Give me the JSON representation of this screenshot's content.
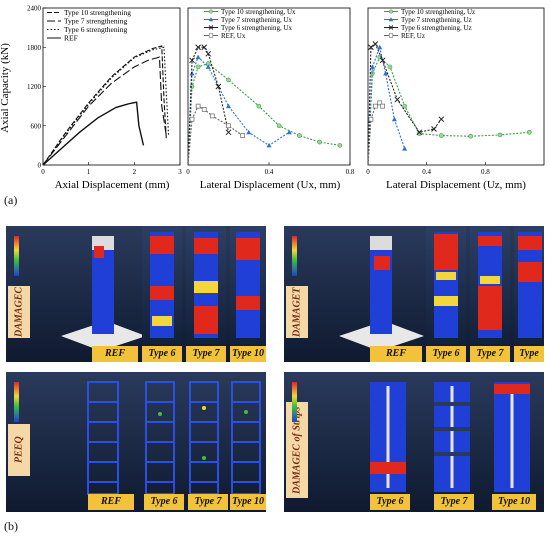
{
  "chart_data": [
    {
      "type": "line",
      "xlabel": "Axial Displacement (mm)",
      "ylabel": "Axial Capacity (kN)",
      "xlim": [
        0,
        3
      ],
      "ylim": [
        0,
        2400
      ],
      "xticks": [
        "0",
        "1",
        "2",
        "3"
      ],
      "yticks": [
        "0",
        "600",
        "1200",
        "1800",
        "2400"
      ],
      "legend": "top-left",
      "series": [
        {
          "name": "Type 10 strengthening",
          "style": "dash",
          "x": [
            0,
            0.5,
            1.0,
            1.5,
            2.0,
            2.4,
            2.6,
            2.65,
            2.7
          ],
          "y": [
            0,
            500,
            950,
            1350,
            1650,
            1780,
            1820,
            1000,
            400
          ]
        },
        {
          "name": "Type 7 strengthening",
          "style": "longdash",
          "x": [
            0,
            0.5,
            1.0,
            1.5,
            2.0,
            2.3,
            2.55,
            2.6,
            2.7
          ],
          "y": [
            0,
            450,
            900,
            1250,
            1500,
            1600,
            1650,
            900,
            450
          ]
        },
        {
          "name": "Type 6 strengthening",
          "style": "dot",
          "x": [
            0,
            0.5,
            1.0,
            1.5,
            2.0,
            2.4,
            2.65,
            2.7,
            2.75
          ],
          "y": [
            0,
            480,
            930,
            1330,
            1640,
            1760,
            1800,
            1100,
            450
          ]
        },
        {
          "name": "REF",
          "style": "solid",
          "x": [
            0,
            0.4,
            0.8,
            1.2,
            1.6,
            1.9,
            2.05,
            2.1,
            2.2
          ],
          "y": [
            0,
            250,
            500,
            720,
            880,
            940,
            960,
            600,
            300
          ]
        }
      ]
    },
    {
      "type": "line",
      "xlabel": "Lateral Displacement (Ux, mm)",
      "xlim": [
        0,
        0.8
      ],
      "ylim": [
        0,
        2400
      ],
      "xticks": [
        "0",
        "0.4",
        "0.8"
      ],
      "legend": "top-right",
      "series": [
        {
          "name": "Type 10 strengthening, Ux",
          "marker": "circle",
          "x": [
            0,
            0.02,
            0.05,
            0.1,
            0.2,
            0.35,
            0.45,
            0.55,
            0.65,
            0.75
          ],
          "y": [
            0,
            1200,
            1500,
            1550,
            1300,
            900,
            600,
            450,
            350,
            300
          ]
        },
        {
          "name": "Type 7 strengthening, Ux",
          "marker": "triangle",
          "x": [
            0,
            0.02,
            0.05,
            0.1,
            0.2,
            0.3,
            0.4,
            0.5
          ],
          "y": [
            0,
            1400,
            1650,
            1500,
            900,
            500,
            300,
            500
          ]
        },
        {
          "name": "Type 6 strengthening, Ux",
          "marker": "x",
          "x": [
            0,
            0.02,
            0.05,
            0.08,
            0.1,
            0.15,
            0.2
          ],
          "y": [
            0,
            1600,
            1800,
            1800,
            1700,
            1200,
            500
          ]
        },
        {
          "name": "REF, Ux",
          "marker": "square",
          "x": [
            0,
            0.02,
            0.05,
            0.08,
            0.12,
            0.2,
            0.27
          ],
          "y": [
            0,
            700,
            900,
            850,
            750,
            600,
            450
          ]
        }
      ]
    },
    {
      "type": "line",
      "xlabel": "Lateral Displacement (Uz, mm)",
      "xlim": [
        0,
        1.2
      ],
      "ylim": [
        0,
        2400
      ],
      "xticks": [
        "0",
        "0.4",
        "0.8"
      ],
      "legend": "top-right",
      "series": [
        {
          "name": "Type 10 strengthening, Uz",
          "marker": "circle",
          "x": [
            0,
            0.03,
            0.08,
            0.15,
            0.25,
            0.35,
            0.5,
            0.7,
            0.9,
            1.1
          ],
          "y": [
            0,
            1400,
            1650,
            1500,
            900,
            480,
            450,
            440,
            460,
            500
          ]
        },
        {
          "name": "Type 7 strengthening, Uz",
          "marker": "triangle",
          "x": [
            0,
            0.03,
            0.08,
            0.12,
            0.18,
            0.25
          ],
          "y": [
            0,
            1500,
            1800,
            1400,
            700,
            250
          ]
        },
        {
          "name": "Type 6 strengthening, Uz",
          "marker": "x",
          "x": [
            0,
            0.02,
            0.05,
            0.1,
            0.2,
            0.35,
            0.45,
            0.5
          ],
          "y": [
            0,
            1800,
            1850,
            1600,
            1000,
            500,
            550,
            700
          ]
        },
        {
          "name": "REF, Uz",
          "marker": "square",
          "x": [
            0,
            0.02,
            0.05,
            0.08,
            0.1
          ],
          "y": [
            0,
            700,
            900,
            950,
            900
          ]
        }
      ]
    }
  ],
  "figure": {
    "label_a": "(a)",
    "label_b": "(b)",
    "panels": [
      {
        "side_label": "DAMAGEC",
        "types": [
          "REF",
          "Type 6",
          "Type 7",
          "Type 10"
        ]
      },
      {
        "side_label": "DAMAGET",
        "types": [
          "REF",
          "Type 6",
          "Type 7",
          "Type"
        ]
      },
      {
        "side_label": "PEEQ",
        "types": [
          "REF",
          "Type 6",
          "Type 7",
          "Type 10"
        ]
      },
      {
        "side_label": "DAMAGEC of Strips",
        "types": [
          "Type 6",
          "Type 7",
          "Type 10"
        ]
      }
    ]
  },
  "colors": {
    "blue": "#1f3fd6",
    "red": "#e0281c",
    "green": "#3fbf3f",
    "yellow": "#f2d63a",
    "tag": "#f3c23b"
  }
}
